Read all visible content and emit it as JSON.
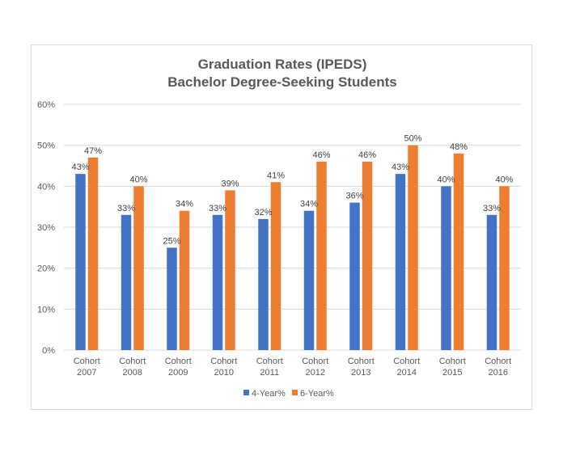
{
  "chart_data": {
    "type": "bar",
    "title": "Graduation Rates (IPEDS)",
    "subtitle": "Bachelor Degree-Seeking Students",
    "categories": [
      [
        "Cohort",
        "2007"
      ],
      [
        "Cohort",
        "2008"
      ],
      [
        "Cohort",
        "2009"
      ],
      [
        "Cohort",
        "2010"
      ],
      [
        "Cohort",
        "2011"
      ],
      [
        "Cohort",
        "2012"
      ],
      [
        "Cohort",
        "2013"
      ],
      [
        "Cohort",
        "2014"
      ],
      [
        "Cohort",
        "2015"
      ],
      [
        "Cohort",
        "2016"
      ]
    ],
    "series": [
      {
        "name": "4-Year%",
        "color": "#4472c4",
        "values": [
          43,
          33,
          25,
          33,
          32,
          34,
          36,
          43,
          40,
          33
        ]
      },
      {
        "name": "6-Year%",
        "color": "#ed7d31",
        "values": [
          47,
          40,
          34,
          39,
          41,
          46,
          46,
          50,
          48,
          40
        ]
      }
    ],
    "value_suffix": "%",
    "ylim": [
      0,
      60
    ],
    "yticks": [
      0,
      10,
      20,
      30,
      40,
      50,
      60
    ],
    "ytick_labels": [
      "0%",
      "10%",
      "20%",
      "30%",
      "40%",
      "50%",
      "60%"
    ],
    "xlabel": "",
    "ylabel": "",
    "grid": true,
    "gridline_color": "#d9d9d9",
    "legend_position": "bottom",
    "data_labels": true
  }
}
